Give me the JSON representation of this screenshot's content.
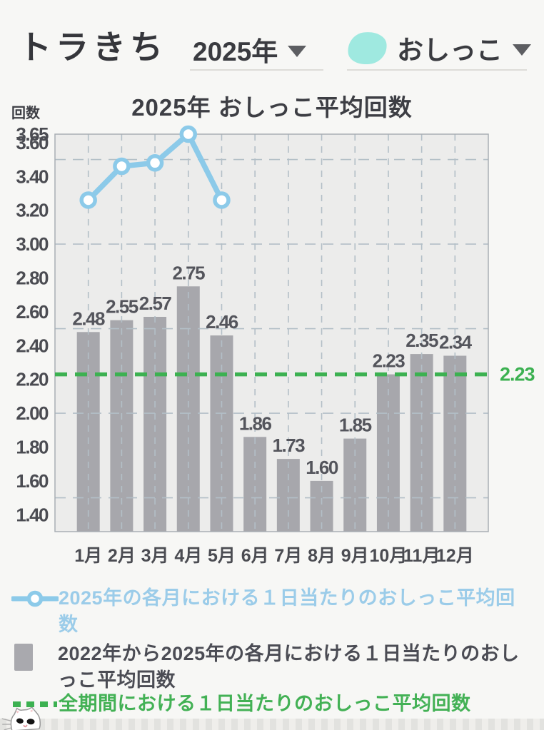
{
  "header": {
    "pet_name": "トラきち",
    "year_selector": {
      "value": "2025年"
    },
    "metric_selector": {
      "value": "おしっこ",
      "icon": "pee-blob-icon",
      "icon_color": "#9fe9e0"
    }
  },
  "chart_data": {
    "type": "bar",
    "title": "2025年 おしっこ平均回数",
    "ylabel": "回数",
    "xlabel": "",
    "categories": [
      "1月",
      "2月",
      "3月",
      "4月",
      "5月",
      "6月",
      "7月",
      "8月",
      "9月",
      "10月",
      "11月",
      "12月"
    ],
    "series": [
      {
        "name": "2025年の各月における１日当たりのおしっこ平均回数",
        "type": "line",
        "color": "#8ccae9",
        "values": [
          3.26,
          3.46,
          3.48,
          3.65,
          3.26,
          null,
          null,
          null,
          null,
          null,
          null,
          null
        ]
      },
      {
        "name": "2022年から2025年の各月における１日当たりのおしっこ平均回数",
        "type": "bar",
        "color": "#a7a7ac",
        "values": [
          2.48,
          2.55,
          2.57,
          2.75,
          2.46,
          1.86,
          1.73,
          1.6,
          1.85,
          2.23,
          2.35,
          2.34
        ]
      },
      {
        "name": "全期間における１日当たりのおしっこ平均回数",
        "type": "hline-dashed",
        "color": "#3cb151",
        "value": 2.23,
        "label": "2.23"
      }
    ],
    "ylim": [
      1.3,
      3.65
    ],
    "yticks": [
      3.65,
      3.6,
      3.4,
      3.2,
      3.0,
      2.8,
      2.6,
      2.4,
      2.2,
      2.0,
      1.8,
      1.6,
      1.4
    ],
    "gridlines_y": [
      3.5,
      3.0,
      2.5,
      2.0,
      1.5
    ],
    "grid": true,
    "legend_position": "bottom",
    "colors": {
      "plot_bg": "#ececeb",
      "grid": "#b3bfc7",
      "border": "#a9aeb4",
      "tick_text": "#4b4c52",
      "bar_label": "#54555c"
    }
  },
  "legend": {
    "items": [
      {
        "label": "2025年の各月における１日当たりのおしっこ平均回数",
        "color": "#9bcce9",
        "swatch": "line-marker"
      },
      {
        "label": "2022年から2025年の各月における１日当たりのおしっこ平均回数",
        "color": "#4b4c54",
        "swatch": "bar"
      },
      {
        "label": "全期間における１日当たりのおしっこ平均回数",
        "color": "#43b155",
        "swatch": "dashed-line"
      }
    ]
  },
  "decor": {
    "cat": "white-cat-peeking"
  }
}
